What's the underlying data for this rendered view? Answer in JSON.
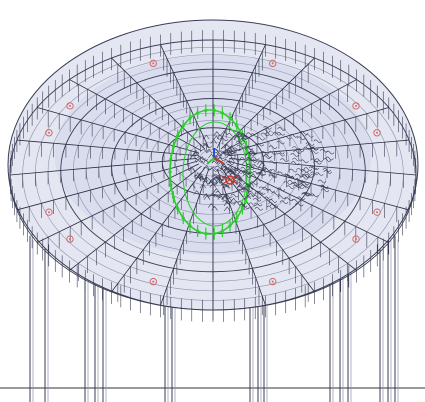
{
  "viewport": {
    "background": "#ffffff",
    "colors": {
      "dome_fill": "#e4e6f2",
      "dome_fill_inner": "#cfd3e8",
      "wire": "#3a3d55",
      "wire_light": "#8d91ad",
      "rib": "#2a2c3e",
      "column": "#3a3d55",
      "selection": "#2ecc2e",
      "node_marker": "#d06a6a",
      "center_red": "#c0392b",
      "center_blue": "#2b4fd0",
      "ground": "#333333"
    },
    "icons": [
      "node-marker-icon",
      "axis-triad-icon"
    ]
  }
}
